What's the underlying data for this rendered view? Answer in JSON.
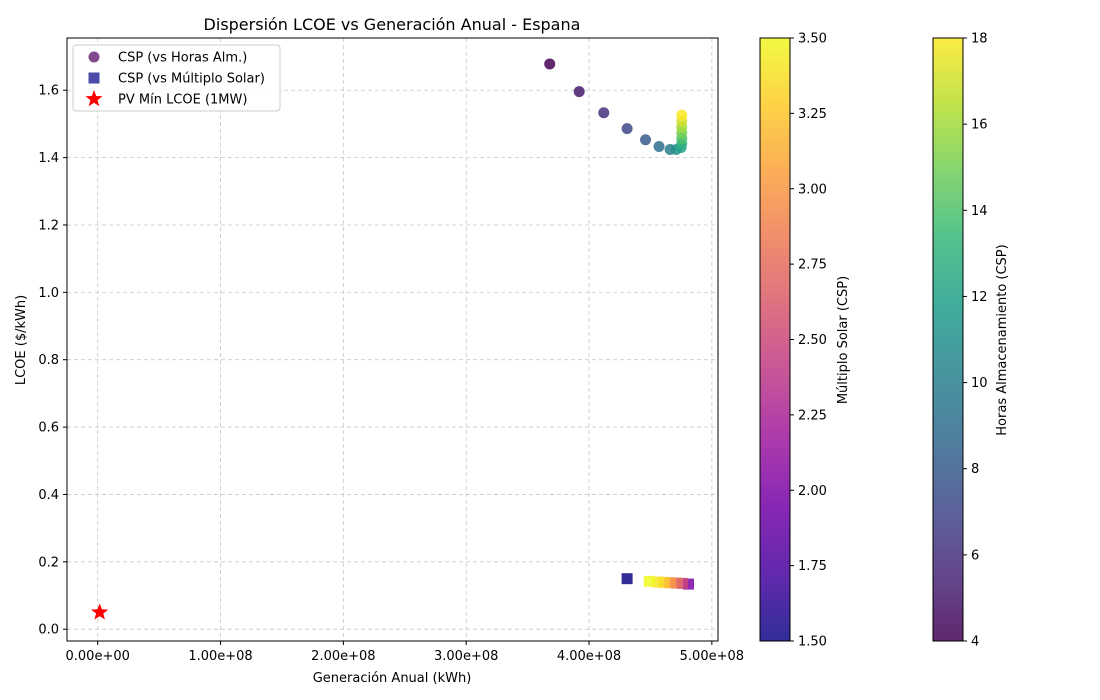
{
  "chart_data": {
    "type": "scatter",
    "title": "Dispersión LCOE vs Generación Anual - Espana",
    "xlabel": "Generación Anual (kWh)",
    "ylabel": "LCOE ($/kWh)",
    "xlim": [
      -25000000.0,
      505000000.0
    ],
    "ylim": [
      -0.035,
      1.755
    ],
    "x_ticks": [
      0,
      100000000.0,
      200000000.0,
      300000000.0,
      400000000.0,
      500000000.0
    ],
    "x_tick_labels": [
      "0.00e+00",
      "1.00e+08",
      "2.00e+08",
      "3.00e+08",
      "4.00e+08",
      "5.00e+08"
    ],
    "y_ticks": [
      0.0,
      0.2,
      0.4,
      0.6,
      0.8,
      1.0,
      1.2,
      1.4,
      1.6
    ],
    "y_tick_labels": [
      "0.0",
      "0.2",
      "0.4",
      "0.6",
      "0.8",
      "1.0",
      "1.2",
      "1.4",
      "1.6"
    ],
    "grid": true,
    "legend_position": "top-left",
    "series": [
      {
        "name": "CSP (vs Horas Alm.)",
        "marker": "circle",
        "colormap": "viridis",
        "legend_color": "#6b2a78",
        "color_var_range": [
          4,
          18
        ],
        "points": [
          {
            "x": 368000000,
            "y": 1.678,
            "c": 4
          },
          {
            "x": 392000000,
            "y": 1.596,
            "c": 5
          },
          {
            "x": 412000000,
            "y": 1.533,
            "c": 6
          },
          {
            "x": 431000000,
            "y": 1.486,
            "c": 7
          },
          {
            "x": 446000000,
            "y": 1.453,
            "c": 8
          },
          {
            "x": 457000000,
            "y": 1.433,
            "c": 9
          },
          {
            "x": 466000000,
            "y": 1.424,
            "c": 10
          },
          {
            "x": 471000000,
            "y": 1.424,
            "c": 11
          },
          {
            "x": 475000000,
            "y": 1.43,
            "c": 12
          },
          {
            "x": 475500000,
            "y": 1.442,
            "c": 13
          },
          {
            "x": 475500000,
            "y": 1.457,
            "c": 14
          },
          {
            "x": 475500000,
            "y": 1.473,
            "c": 15
          },
          {
            "x": 475500000,
            "y": 1.49,
            "c": 16
          },
          {
            "x": 475500000,
            "y": 1.508,
            "c": 17
          },
          {
            "x": 475500000,
            "y": 1.526,
            "c": 18
          }
        ]
      },
      {
        "name": "CSP (vs Múltiplo Solar)",
        "marker": "square",
        "colormap": "plasma",
        "legend_color": "#2a2a9a",
        "color_var_range": [
          1.5,
          3.5
        ],
        "points": [
          {
            "x": 431000000,
            "y": 0.15,
            "c": 1.5
          },
          {
            "x": 481000000,
            "y": 0.134,
            "c": 2.0
          },
          {
            "x": 476000000,
            "y": 0.136,
            "c": 2.5
          },
          {
            "x": 471000000,
            "y": 0.137,
            "c": 2.75
          },
          {
            "x": 466000000,
            "y": 0.138,
            "c": 3.0
          },
          {
            "x": 461000000,
            "y": 0.139,
            "c": 3.25
          },
          {
            "x": 456000000,
            "y": 0.14,
            "c": 3.4
          },
          {
            "x": 449000000,
            "y": 0.142,
            "c": 3.5
          }
        ]
      },
      {
        "name": "PV Mín LCOE (1MW)",
        "marker": "star",
        "color": "#ff0000",
        "points": [
          {
            "x": 1600000,
            "y": 0.05
          }
        ]
      }
    ],
    "colorbars": [
      {
        "label": "Múltiplo Solar (CSP)",
        "colormap": "plasma",
        "range": [
          1.5,
          3.5
        ],
        "ticks": [
          1.5,
          1.75,
          2.0,
          2.25,
          2.5,
          2.75,
          3.0,
          3.25,
          3.5
        ],
        "tick_labels": [
          "1.50",
          "1.75",
          "2.00",
          "2.25",
          "2.50",
          "2.75",
          "3.00",
          "3.25",
          "3.50"
        ]
      },
      {
        "label": "Horas Almacenamiento (CSP)",
        "colormap": "viridis",
        "range": [
          4,
          18
        ],
        "ticks": [
          4,
          6,
          8,
          10,
          12,
          14,
          16,
          18
        ],
        "tick_labels": [
          "4",
          "6",
          "8",
          "10",
          "12",
          "14",
          "16",
          "18"
        ]
      }
    ]
  }
}
